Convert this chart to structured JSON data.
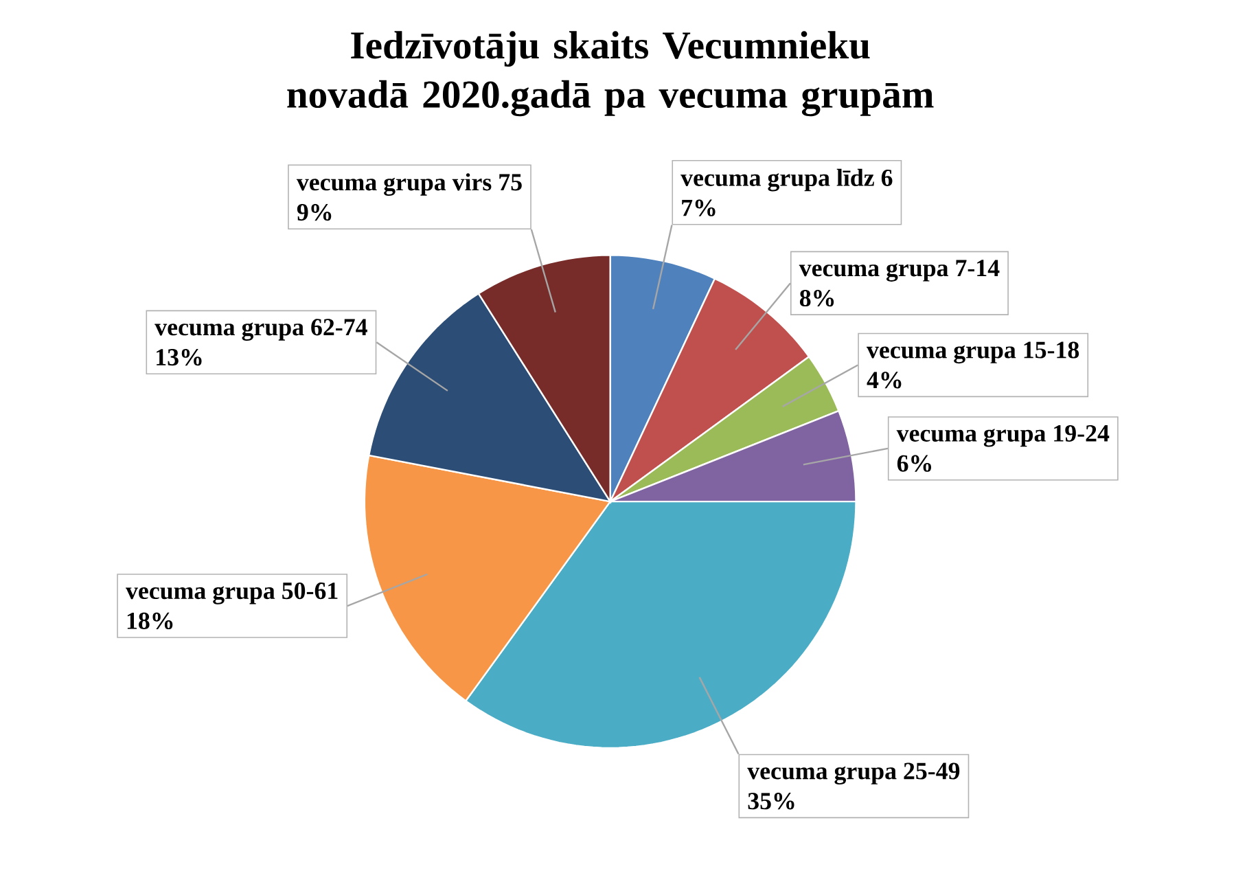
{
  "chart_data": {
    "type": "pie",
    "title": "Iedzīvotāju skaits Vecumnieku novadā 2020.gadā pa vecuma grupām",
    "categories": [
      "vecuma grupa līdz 6",
      "vecuma grupa 7-14",
      "vecuma grupa 15-18",
      "vecuma grupa 19-24",
      "vecuma grupa 25-49",
      "vecuma grupa 50-61",
      "vecuma grupa 62-74",
      "vecuma grupa virs 75"
    ],
    "values": [
      7,
      8,
      4,
      6,
      35,
      18,
      13,
      9
    ],
    "value_labels": [
      "7%",
      "8%",
      "4%",
      "6%",
      "35%",
      "18%",
      "13%",
      "9%"
    ],
    "colors": [
      "#4f81bd",
      "#c0504d",
      "#9bbb59",
      "#8064a2",
      "#4bacc6",
      "#f79646",
      "#2c4d75",
      "#772c2a"
    ]
  }
}
